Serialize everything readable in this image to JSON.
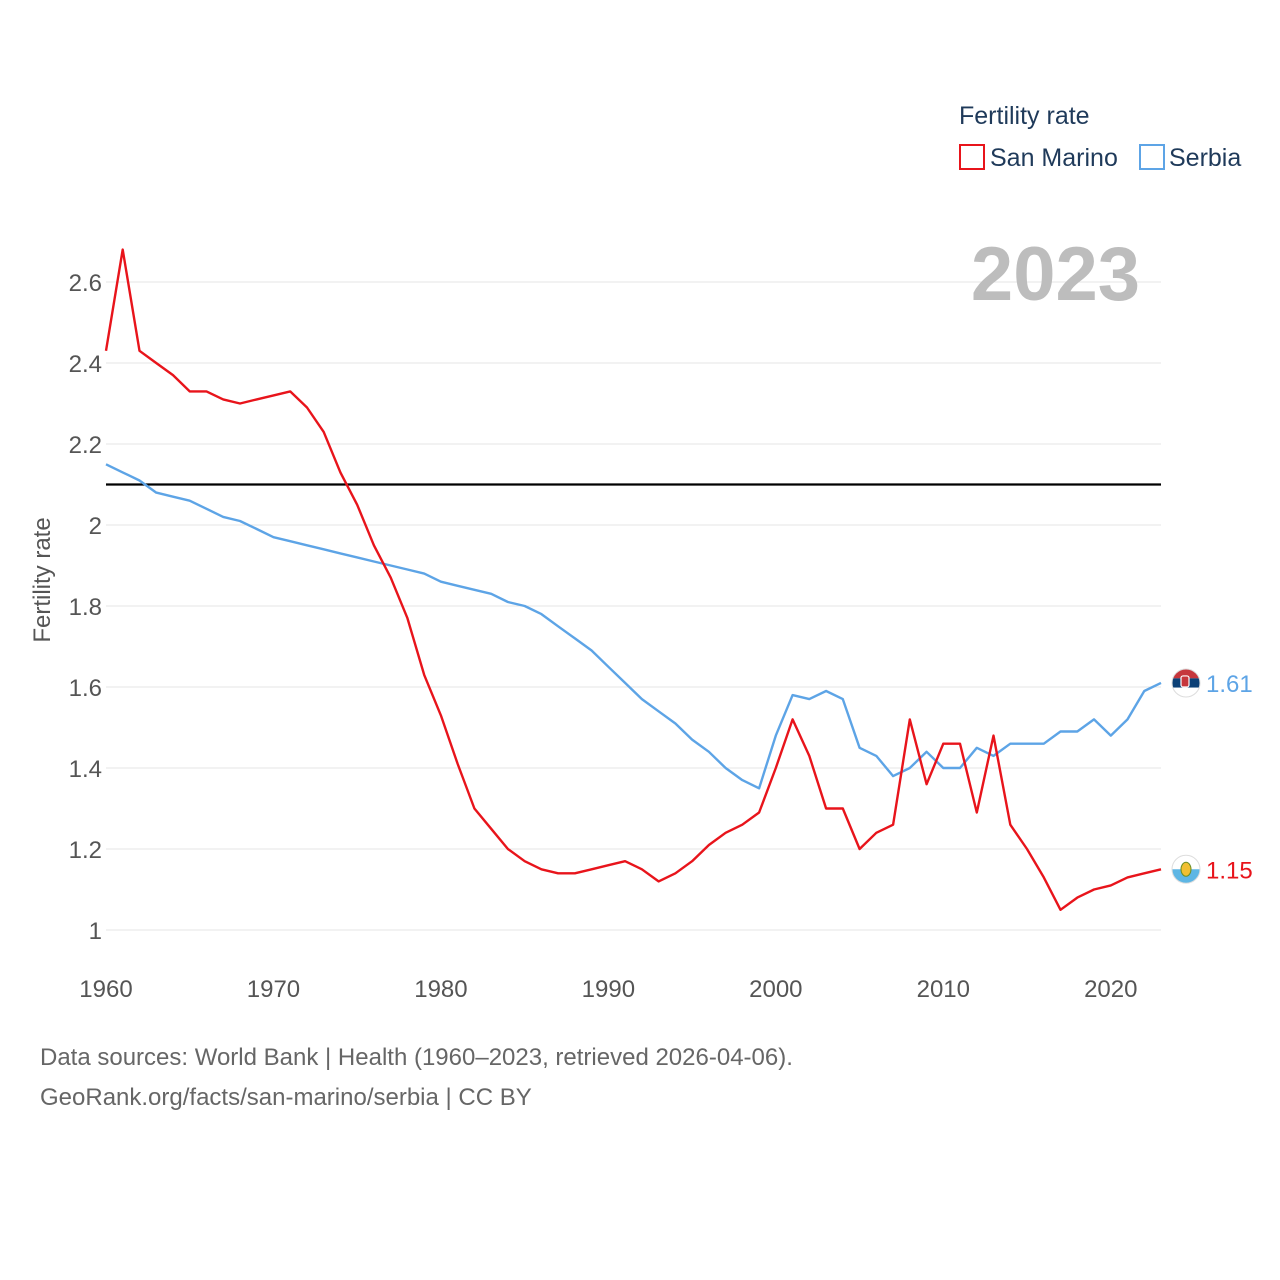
{
  "chart_data": {
    "type": "line",
    "ylabel": "Fertility rate",
    "xlabel": "",
    "xlim": [
      1960,
      2023
    ],
    "ylim": [
      1.0,
      2.65
    ],
    "x_ticks": [
      1960,
      1970,
      1980,
      1990,
      2000,
      2010,
      2020
    ],
    "y_ticks": [
      1,
      1.2,
      1.4,
      1.6,
      1.8,
      2,
      2.2,
      2.4,
      2.6
    ],
    "y_tick_labels": [
      "1",
      "1.2",
      "1.4",
      "1.6",
      "1.8",
      "2",
      "2.2",
      "2.4",
      "2.6"
    ],
    "reference_line": {
      "y": 2.1,
      "color": "#000000"
    },
    "year_display": "2023",
    "legend": {
      "title": "Fertility rate",
      "position": "top-right"
    },
    "x": [
      1960,
      1961,
      1962,
      1963,
      1964,
      1965,
      1966,
      1967,
      1968,
      1969,
      1970,
      1971,
      1972,
      1973,
      1974,
      1975,
      1976,
      1977,
      1978,
      1979,
      1980,
      1981,
      1982,
      1983,
      1984,
      1985,
      1986,
      1987,
      1988,
      1989,
      1990,
      1991,
      1992,
      1993,
      1994,
      1995,
      1996,
      1997,
      1998,
      1999,
      2000,
      2001,
      2002,
      2003,
      2004,
      2005,
      2006,
      2007,
      2008,
      2009,
      2010,
      2011,
      2012,
      2013,
      2014,
      2015,
      2016,
      2017,
      2018,
      2019,
      2020,
      2021,
      2022,
      2023
    ],
    "series": [
      {
        "name": "San Marino",
        "color": "#e8141b",
        "end_label": "1.15",
        "flag": "san-marino-flag-icon",
        "values": [
          2.43,
          2.68,
          2.43,
          2.4,
          2.37,
          2.33,
          2.33,
          2.31,
          2.3,
          2.31,
          2.32,
          2.33,
          2.29,
          2.23,
          2.13,
          2.05,
          1.95,
          1.87,
          1.77,
          1.63,
          1.53,
          1.41,
          1.3,
          1.25,
          1.2,
          1.17,
          1.15,
          1.14,
          1.14,
          1.15,
          1.16,
          1.17,
          1.15,
          1.12,
          1.14,
          1.17,
          1.21,
          1.24,
          1.26,
          1.29,
          1.4,
          1.52,
          1.43,
          1.3,
          1.3,
          1.2,
          1.24,
          1.26,
          1.52,
          1.36,
          1.46,
          1.46,
          1.29,
          1.48,
          1.26,
          1.2,
          1.13,
          1.05,
          1.08,
          1.1,
          1.11,
          1.13,
          1.14,
          1.15
        ]
      },
      {
        "name": "Serbia",
        "color": "#5da4e6",
        "end_label": "1.61",
        "flag": "serbia-flag-icon",
        "values": [
          2.15,
          2.13,
          2.11,
          2.08,
          2.07,
          2.06,
          2.04,
          2.02,
          2.01,
          1.99,
          1.97,
          1.96,
          1.95,
          1.94,
          1.93,
          1.92,
          1.91,
          1.9,
          1.89,
          1.88,
          1.86,
          1.85,
          1.84,
          1.83,
          1.81,
          1.8,
          1.78,
          1.75,
          1.72,
          1.69,
          1.65,
          1.61,
          1.57,
          1.54,
          1.51,
          1.47,
          1.44,
          1.4,
          1.37,
          1.35,
          1.48,
          1.58,
          1.57,
          1.59,
          1.57,
          1.45,
          1.43,
          1.38,
          1.4,
          1.44,
          1.4,
          1.4,
          1.45,
          1.43,
          1.46,
          1.46,
          1.46,
          1.49,
          1.49,
          1.52,
          1.48,
          1.52,
          1.59,
          1.61
        ]
      }
    ]
  },
  "footer": {
    "source": "Data sources: World Bank | Health (1960–2023, retrieved 2026-04-06).",
    "credit": "GeoRank.org/facts/san-marino/serbia | CC BY"
  }
}
